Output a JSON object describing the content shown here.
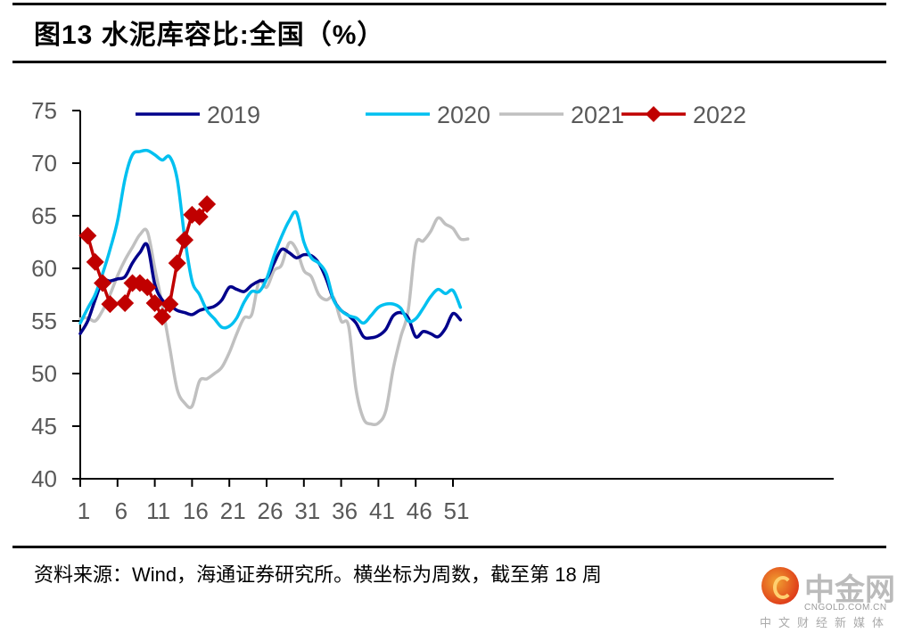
{
  "figure": {
    "title": "图13 水泥库容比:全国（%）",
    "source_note": "资料来源：Wind，海通证券研究所。横坐标为周数，截至第 18 周",
    "watermark": {
      "name": "中金网",
      "domain": "CNGOLD.COM.CN",
      "tagline": "中文财经新媒体"
    }
  },
  "chart_data": {
    "type": "line",
    "title": "图13 水泥库容比:全国（%）",
    "xlabel": "周数",
    "ylabel": "%",
    "xlim": [
      1,
      53
    ],
    "ylim": [
      40,
      75
    ],
    "x_ticks": [
      1,
      6,
      11,
      16,
      21,
      26,
      31,
      36,
      41,
      46,
      51
    ],
    "y_ticks": [
      40,
      45,
      50,
      55,
      60,
      65,
      70,
      75
    ],
    "grid": false,
    "legend": {
      "position": "top",
      "entries": [
        "2019",
        "2020",
        "2021",
        "2022"
      ]
    },
    "series": [
      {
        "name": "2019",
        "color": "#00008B",
        "marker": "none",
        "x": [
          1,
          2,
          3,
          4,
          5,
          6,
          7,
          8,
          9,
          10,
          11,
          12,
          13,
          14,
          15,
          16,
          17,
          18,
          19,
          20,
          21,
          22,
          23,
          24,
          25,
          26,
          27,
          28,
          29,
          30,
          31,
          32,
          33,
          34,
          35,
          36,
          37,
          38,
          39,
          40,
          41,
          42,
          43,
          44,
          45,
          46,
          47,
          48,
          49,
          50,
          51,
          52
        ],
        "values": [
          53.8,
          55.0,
          57.0,
          58.8,
          58.8,
          59.0,
          59.2,
          60.5,
          61.5,
          62.2,
          58.5,
          57.0,
          56.5,
          56.0,
          55.8,
          55.6,
          56.0,
          56.2,
          56.4,
          57.0,
          58.2,
          58.0,
          57.8,
          58.4,
          58.8,
          59.0,
          60.5,
          61.8,
          61.5,
          61.0,
          61.3,
          61.2,
          60.5,
          59.0,
          57.0,
          56.0,
          55.5,
          54.8,
          53.5,
          53.4,
          53.6,
          54.2,
          55.5,
          55.8,
          55.3,
          53.5,
          54.0,
          53.8,
          53.5,
          54.3,
          55.7,
          55.1
        ]
      },
      {
        "name": "2020",
        "color": "#00C0F0",
        "marker": "none",
        "x": [
          1,
          2,
          3,
          4,
          5,
          6,
          7,
          8,
          9,
          10,
          11,
          12,
          13,
          14,
          15,
          16,
          17,
          18,
          19,
          20,
          21,
          22,
          23,
          24,
          25,
          26,
          27,
          28,
          29,
          30,
          31,
          32,
          33,
          34,
          35,
          36,
          37,
          38,
          39,
          40,
          41,
          42,
          43,
          44,
          45,
          46,
          47,
          48,
          49,
          50,
          51,
          52
        ],
        "values": [
          54.8,
          56.2,
          57.5,
          59.5,
          61.8,
          64.5,
          68.5,
          70.8,
          71.1,
          71.2,
          70.8,
          70.3,
          70.6,
          68.5,
          63.0,
          58.8,
          57.5,
          56.0,
          55.2,
          54.4,
          54.5,
          55.3,
          56.8,
          57.8,
          57.8,
          59.0,
          61.2,
          63.0,
          64.5,
          65.3,
          62.5,
          61.0,
          60.5,
          59.5,
          57.0,
          56.0,
          55.5,
          55.3,
          54.8,
          55.5,
          56.3,
          56.6,
          56.6,
          56.2,
          55.0,
          55.2,
          56.2,
          57.3,
          58.0,
          57.6,
          57.9,
          56.3
        ]
      },
      {
        "name": "2021",
        "color": "#C0C0C0",
        "marker": "none",
        "x": [
          1,
          2,
          3,
          4,
          5,
          6,
          7,
          8,
          9,
          10,
          11,
          12,
          13,
          14,
          15,
          16,
          17,
          18,
          19,
          20,
          21,
          22,
          23,
          24,
          25,
          26,
          27,
          28,
          29,
          30,
          31,
          32,
          33,
          34,
          35,
          36,
          37,
          38,
          39,
          40,
          41,
          42,
          43,
          44,
          45,
          46,
          47,
          48,
          49,
          50,
          51,
          52,
          53
        ],
        "values": [
          55.2,
          55.3,
          55.0,
          56.0,
          57.5,
          59.3,
          60.8,
          62.0,
          63.2,
          63.5,
          60.0,
          56.5,
          52.5,
          48.5,
          47.2,
          46.9,
          49.3,
          49.5,
          50.0,
          50.6,
          52.0,
          53.8,
          55.3,
          55.6,
          58.8,
          58.2,
          59.8,
          60.3,
          62.4,
          61.8,
          59.8,
          59.2,
          57.5,
          57.0,
          57.2,
          55.0,
          54.5,
          48.5,
          45.7,
          45.2,
          45.3,
          46.5,
          50.5,
          53.5,
          56.0,
          62.2,
          62.6,
          63.5,
          64.8,
          64.2,
          63.8,
          62.8,
          62.8
        ]
      },
      {
        "name": "2022",
        "color": "#C00000",
        "marker": "diamond",
        "x": [
          2,
          3,
          4,
          5,
          7,
          8,
          9,
          10,
          11,
          12,
          13,
          14,
          15,
          16,
          17,
          18
        ],
        "values": [
          63.1,
          60.6,
          58.6,
          56.6,
          56.7,
          58.6,
          58.6,
          58.2,
          56.7,
          55.4,
          56.6,
          60.5,
          62.7,
          65.1,
          64.9,
          66.1
        ]
      }
    ]
  }
}
